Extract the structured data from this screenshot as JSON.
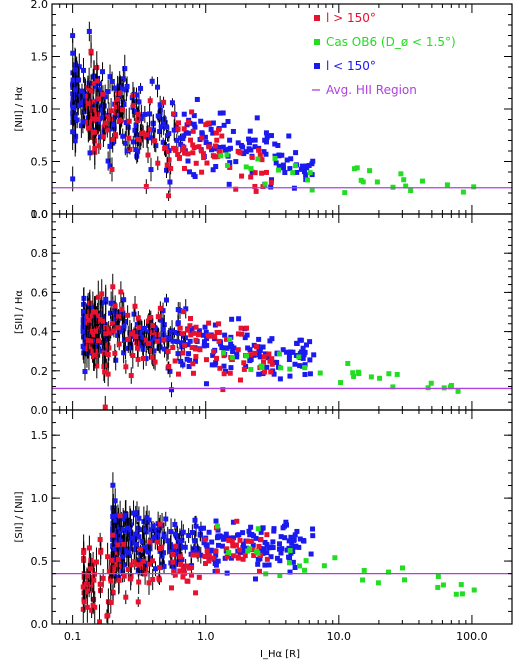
{
  "colors": {
    "red": "#e8122e",
    "green": "#22dd22",
    "blue": "#1a1aee",
    "purple": "#b040e0",
    "axis": "#000000"
  },
  "legend": [
    {
      "label": "l > 150°",
      "color": "#e8122e",
      "marker": "dot"
    },
    {
      "label": "Cas OB6 (D_ø < 1.5°)",
      "color": "#22dd22",
      "marker": "dot"
    },
    {
      "label": "l < 150°",
      "color": "#1a1aee",
      "marker": "dot"
    },
    {
      "label": "Avg. HII Region",
      "color": "#b040e0",
      "marker": "line"
    }
  ],
  "x_axis": {
    "label": "I_Hα [R]",
    "scale": "log",
    "range": [
      0.07,
      200
    ],
    "tick_labels": [
      "0.1",
      "1.0",
      "10.0",
      "100.0"
    ]
  },
  "chart_data": [
    {
      "type": "scatter",
      "ylabel": "[NII] / Hα",
      "ylim": [
        0,
        2.0
      ],
      "y_tick_labels": [
        "0.0",
        "0.5",
        "1.0",
        "1.5",
        "2.0"
      ],
      "reference_line": {
        "name": "Avg. HII Region",
        "y": 0.25
      },
      "series": [
        {
          "name": "l > 150°",
          "x_range": [
            0.13,
            3.2
          ],
          "y_center": [
            0.95,
            0.4
          ],
          "scatter": 0.2,
          "n": 150
        },
        {
          "name": "l < 150°",
          "x_range": [
            0.1,
            6.5
          ],
          "y_center": [
            1.1,
            0.42
          ],
          "scatter": 0.22,
          "n": 320
        },
        {
          "name": "Cas OB6 (D_ø < 1.5°)",
          "x_range": [
            1.2,
            110
          ],
          "y_center": [
            0.5,
            0.22
          ],
          "scatter": 0.08,
          "n": 30
        }
      ]
    },
    {
      "type": "scatter",
      "ylabel": "[SII] / Hα",
      "ylim": [
        0,
        1.0
      ],
      "y_tick_labels": [
        "0.0",
        "0.2",
        "0.4",
        "0.6",
        "0.8",
        "1.0"
      ],
      "reference_line": {
        "name": "Avg. HII Region",
        "y": 0.11
      },
      "series": [
        {
          "name": "l > 150°",
          "x_range": [
            0.13,
            3.2
          ],
          "y_center": [
            0.38,
            0.25
          ],
          "scatter": 0.12,
          "n": 150
        },
        {
          "name": "l < 150°",
          "x_range": [
            0.12,
            6.5
          ],
          "y_center": [
            0.42,
            0.25
          ],
          "scatter": 0.09,
          "n": 320
        },
        {
          "name": "Cas OB6 (D_ø < 1.5°)",
          "x_range": [
            1.2,
            110
          ],
          "y_center": [
            0.28,
            0.1
          ],
          "scatter": 0.04,
          "n": 30
        }
      ]
    },
    {
      "type": "scatter",
      "ylabel": "[SII] / [NII]",
      "ylim": [
        0,
        1.7
      ],
      "y_tick_labels": [
        "0.0",
        "0.5",
        "1.0",
        "1.5"
      ],
      "reference_line": {
        "name": "Avg. HII Region",
        "y": 0.4
      },
      "series": [
        {
          "name": "l > 150°",
          "x_range": [
            0.12,
            3.2
          ],
          "y_center": [
            0.35,
            0.62
          ],
          "scatter": 0.15,
          "n": 150
        },
        {
          "name": "l < 150°",
          "x_range": [
            0.2,
            6.5
          ],
          "y_center": [
            0.68,
            0.6
          ],
          "scatter": 0.13,
          "n": 320
        },
        {
          "name": "Cas OB6 (D_ø < 1.5°)",
          "x_range": [
            1.2,
            110
          ],
          "y_center": [
            0.62,
            0.28
          ],
          "scatter": 0.08,
          "n": 30
        }
      ]
    }
  ]
}
